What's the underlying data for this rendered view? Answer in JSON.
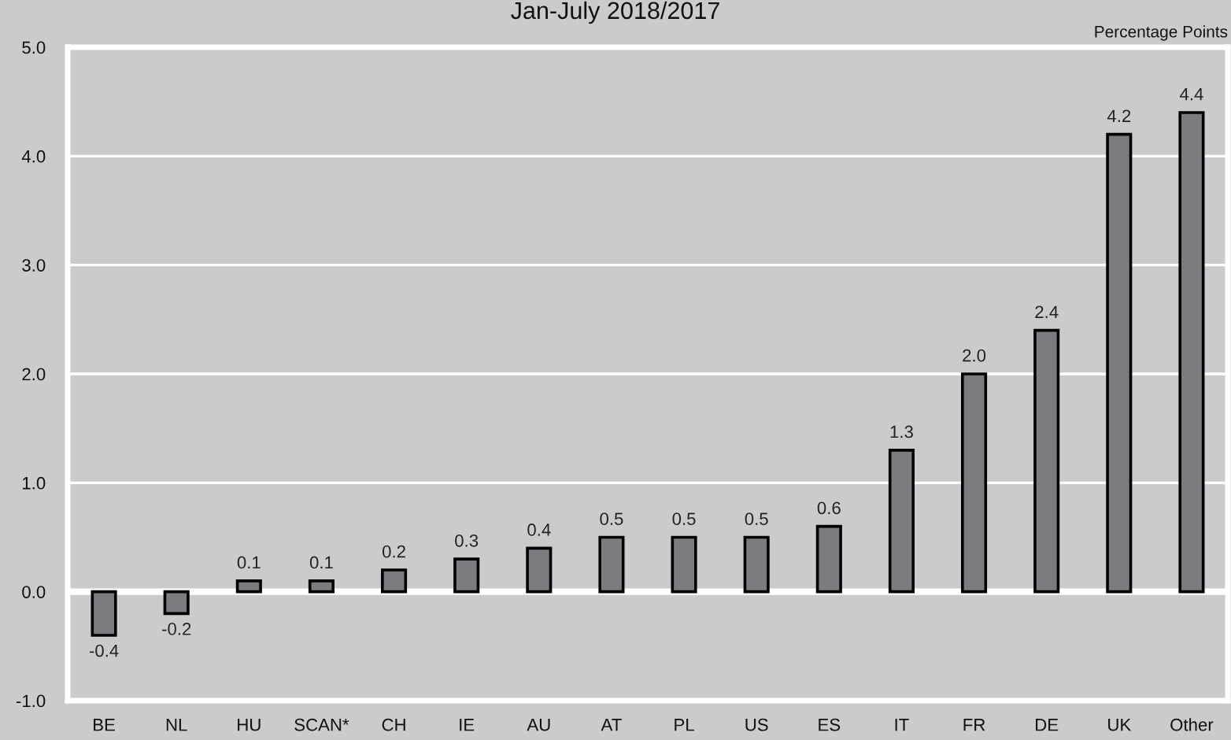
{
  "chart_data": {
    "type": "bar",
    "title": "Jan-July 2018/2017",
    "annotations": [
      "Percentage Points"
    ],
    "categories": [
      "BE",
      "NL",
      "HU",
      "SCAN*",
      "CH",
      "IE",
      "AU",
      "AT",
      "PL",
      "US",
      "ES",
      "IT",
      "FR",
      "DE",
      "UK",
      "Other"
    ],
    "values": [
      -0.4,
      -0.2,
      0.1,
      0.1,
      0.2,
      0.3,
      0.4,
      0.5,
      0.5,
      0.5,
      0.6,
      1.3,
      2.0,
      2.4,
      4.2,
      4.4
    ],
    "value_labels": [
      "-0.4",
      "-0.2",
      "0.1",
      "0.1",
      "0.2",
      "0.3",
      "0.4",
      "0.5",
      "0.5",
      "0.5",
      "0.6",
      "1.3",
      "2.0",
      "2.4",
      "4.2",
      "4.4"
    ],
    "color": "#7b7b80",
    "ylim": [
      -1,
      5
    ],
    "yticks": [
      {
        "value": -1,
        "label": "-1.0"
      },
      {
        "value": 0,
        "label": "0.0"
      },
      {
        "value": 1,
        "label": "1.0"
      },
      {
        "value": 2,
        "label": "2.0"
      },
      {
        "value": 3,
        "label": "3.0"
      },
      {
        "value": 4,
        "label": "4.0"
      },
      {
        "value": 5,
        "label": "5.0"
      }
    ],
    "grid": "y",
    "ref_lines": [
      {
        "axis": "y",
        "value": 0,
        "color": "#ffffff"
      }
    ]
  }
}
